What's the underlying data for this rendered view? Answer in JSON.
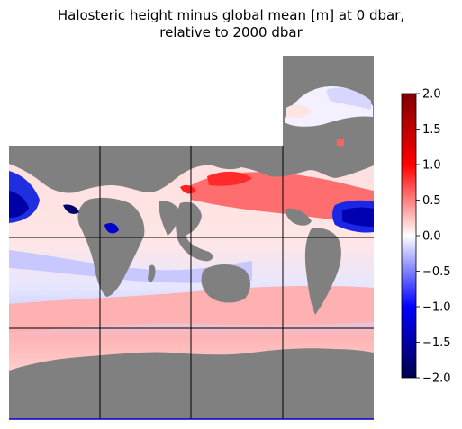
{
  "title": {
    "line1": "Halosteric height minus global mean [m] at 0 dbar,",
    "line2": "relative to 2000 dbar"
  },
  "colorbar": {
    "colormap": "seismic",
    "range": [
      -2.0,
      2.0
    ],
    "ticks": [
      "2.0",
      "1.5",
      "1.0",
      "0.5",
      "0.0",
      "−0.5",
      "−1.0",
      "−1.5",
      "−2.0"
    ]
  },
  "colors": {
    "land": "#808080",
    "grid_lines": "#000000",
    "frame_bottom": "#0000cc"
  },
  "grid": {
    "columns": 4,
    "rows": 3,
    "top_right_extension": "one extra tile above the rightmost column"
  }
}
